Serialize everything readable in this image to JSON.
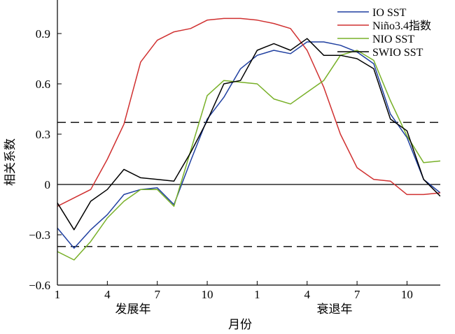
{
  "chart_data": {
    "type": "line",
    "xlabel": "月份",
    "ylabel": "相关系数",
    "x_tick_labels": [
      "1",
      "4",
      "7",
      "10",
      "1",
      "4",
      "7",
      "10"
    ],
    "x_group_labels": [
      "发展年",
      "衰退年"
    ],
    "ylim": [
      -0.6,
      1.1
    ],
    "yticks": [
      -0.6,
      -0.3,
      0,
      0.3,
      0.6,
      0.9
    ],
    "ytick_labels": [
      "−0.6",
      "−0.3",
      "0",
      "0.3",
      "0.6",
      "0.9"
    ],
    "grid": false,
    "legend_position": "top-right",
    "reference_lines": [
      {
        "value": 0.37,
        "style": "dashed"
      },
      {
        "value": -0.37,
        "style": "dashed"
      },
      {
        "value": 0,
        "style": "solid"
      }
    ],
    "series": [
      {
        "name": "IO SST",
        "color": "#1f3fa0",
        "values": [
          -0.26,
          -0.38,
          -0.27,
          -0.18,
          -0.06,
          -0.03,
          -0.02,
          -0.12,
          0.14,
          0.39,
          0.52,
          0.69,
          0.77,
          0.8,
          0.78,
          0.85,
          0.85,
          0.83,
          0.79,
          0.72,
          0.42,
          0.28,
          0.03,
          -0.05
        ]
      },
      {
        "name": "Niño3.4指数",
        "color": "#d03030",
        "values": [
          -0.13,
          -0.08,
          -0.03,
          0.15,
          0.36,
          0.73,
          0.86,
          0.91,
          0.93,
          0.98,
          0.99,
          0.99,
          0.98,
          0.96,
          0.93,
          0.8,
          0.58,
          0.3,
          0.1,
          0.03,
          0.02,
          -0.06,
          -0.06,
          -0.05
        ]
      },
      {
        "name": "NIO SST",
        "color": "#78b028",
        "values": [
          -0.4,
          -0.45,
          -0.34,
          -0.2,
          -0.1,
          -0.03,
          -0.03,
          -0.13,
          0.2,
          0.53,
          0.62,
          0.61,
          0.6,
          0.51,
          0.48,
          0.55,
          0.62,
          0.77,
          0.8,
          0.74,
          0.5,
          0.29,
          0.13,
          0.14
        ]
      },
      {
        "name": "SWIO SST",
        "color": "#000000",
        "values": [
          -0.11,
          -0.27,
          -0.1,
          -0.03,
          0.09,
          0.04,
          0.03,
          0.02,
          0.19,
          0.38,
          0.6,
          0.62,
          0.8,
          0.84,
          0.8,
          0.87,
          0.77,
          0.77,
          0.75,
          0.69,
          0.39,
          0.32,
          0.03,
          -0.07
        ]
      }
    ]
  }
}
